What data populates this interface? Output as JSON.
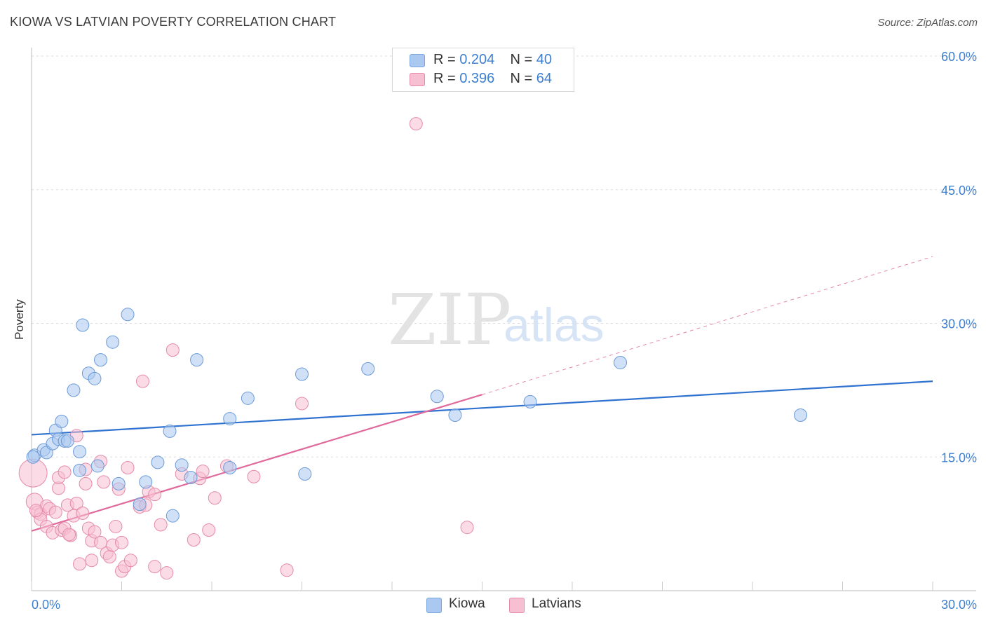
{
  "header": {
    "title": "KIOWA VS LATVIAN POVERTY CORRELATION CHART",
    "source": "Source: ZipAtlas.com"
  },
  "watermark": {
    "zip": "ZIP",
    "atlas": "atlas"
  },
  "legend": {
    "r_label": "R =",
    "n_label": "N =",
    "rows": [
      {
        "r": "0.204",
        "n": "40",
        "color": "#aac8f0",
        "border": "#7aa6de"
      },
      {
        "r": "0.396",
        "n": "64",
        "color": "#f7c0d2",
        "border": "#e58aa8"
      }
    ]
  },
  "chart_data": {
    "type": "scatter",
    "title": "KIOWA VS LATVIAN POVERTY CORRELATION CHART",
    "xlabel": "",
    "ylabel": "Poverty",
    "xlim": [
      0,
      30
    ],
    "ylim": [
      0,
      60
    ],
    "x_tick_labels": [
      "0.0%",
      "30.0%"
    ],
    "y_tick_labels": [
      "15.0%",
      "30.0%",
      "45.0%",
      "60.0%"
    ],
    "y_ticks": [
      15,
      30,
      45,
      60
    ],
    "grid": true,
    "legend_position": "bottom-center",
    "series": [
      {
        "name": "Kiowa",
        "color": "#aac8f0",
        "stroke": "#6b9ad8",
        "line_color": "#2f72d0",
        "trend": {
          "x": [
            0,
            30
          ],
          "y": [
            17.5,
            23.5
          ],
          "dashed_extension": false
        },
        "points": [
          [
            0.1,
            15.2
          ],
          [
            0.4,
            15.8
          ],
          [
            0.5,
            15.5
          ],
          [
            0.7,
            16.5
          ],
          [
            0.8,
            18.0
          ],
          [
            0.9,
            17.0
          ],
          [
            1.0,
            19.0
          ],
          [
            1.1,
            16.8
          ],
          [
            1.2,
            16.8
          ],
          [
            1.4,
            22.5
          ],
          [
            1.6,
            13.5
          ],
          [
            1.6,
            15.6
          ],
          [
            1.7,
            29.8
          ],
          [
            1.9,
            24.4
          ],
          [
            2.1,
            23.8
          ],
          [
            2.2,
            14.0
          ],
          [
            2.3,
            25.9
          ],
          [
            2.7,
            27.9
          ],
          [
            2.9,
            12.0
          ],
          [
            3.2,
            31.0
          ],
          [
            3.6,
            9.7
          ],
          [
            3.8,
            12.2
          ],
          [
            4.2,
            14.4
          ],
          [
            4.6,
            17.9
          ],
          [
            4.7,
            8.4
          ],
          [
            5.0,
            14.1
          ],
          [
            5.3,
            12.7
          ],
          [
            5.5,
            25.9
          ],
          [
            6.6,
            13.8
          ],
          [
            6.6,
            19.3
          ],
          [
            7.2,
            21.6
          ],
          [
            9.0,
            24.3
          ],
          [
            9.1,
            13.1
          ],
          [
            11.2,
            24.9
          ],
          [
            13.5,
            21.8
          ],
          [
            14.1,
            19.7
          ],
          [
            16.6,
            21.2
          ],
          [
            19.6,
            25.6
          ],
          [
            25.6,
            19.7
          ],
          [
            0.05,
            15.0
          ]
        ]
      },
      {
        "name": "Latvians",
        "color": "#f7c0d2",
        "stroke": "#e58aa8",
        "line_color": "#e0689a",
        "trend": {
          "x": [
            0,
            15
          ],
          "y": [
            6.7,
            22.0
          ],
          "dashed_extension": {
            "x": [
              15,
              30
            ],
            "y": [
              22.0,
              37.5
            ]
          }
        },
        "points": [
          [
            0.05,
            13.2
          ],
          [
            0.1,
            10.0
          ],
          [
            0.2,
            8.8
          ],
          [
            0.3,
            8.6
          ],
          [
            0.3,
            8.0
          ],
          [
            0.5,
            9.5
          ],
          [
            0.5,
            7.2
          ],
          [
            0.7,
            6.5
          ],
          [
            0.6,
            9.2
          ],
          [
            0.8,
            8.8
          ],
          [
            0.9,
            11.5
          ],
          [
            0.9,
            12.7
          ],
          [
            1.0,
            6.8
          ],
          [
            1.1,
            7.0
          ],
          [
            1.1,
            13.3
          ],
          [
            1.2,
            9.6
          ],
          [
            1.3,
            6.2
          ],
          [
            1.4,
            8.4
          ],
          [
            1.5,
            17.4
          ],
          [
            1.5,
            9.8
          ],
          [
            1.6,
            3.0
          ],
          [
            1.7,
            8.7
          ],
          [
            1.8,
            12.0
          ],
          [
            1.8,
            13.6
          ],
          [
            1.9,
            7.0
          ],
          [
            2.0,
            5.6
          ],
          [
            2.0,
            3.4
          ],
          [
            2.1,
            6.6
          ],
          [
            2.3,
            5.4
          ],
          [
            2.3,
            14.5
          ],
          [
            2.4,
            12.2
          ],
          [
            2.5,
            4.2
          ],
          [
            2.6,
            3.8
          ],
          [
            2.7,
            5.1
          ],
          [
            2.8,
            7.2
          ],
          [
            2.9,
            11.4
          ],
          [
            3.0,
            2.2
          ],
          [
            3.0,
            5.4
          ],
          [
            3.1,
            2.7
          ],
          [
            3.2,
            13.8
          ],
          [
            3.3,
            3.4
          ],
          [
            3.6,
            9.4
          ],
          [
            3.7,
            23.5
          ],
          [
            3.8,
            9.6
          ],
          [
            3.9,
            11.1
          ],
          [
            4.1,
            10.8
          ],
          [
            4.1,
            2.7
          ],
          [
            4.3,
            7.4
          ],
          [
            4.5,
            2.0
          ],
          [
            4.7,
            27.0
          ],
          [
            5.0,
            13.1
          ],
          [
            5.4,
            5.7
          ],
          [
            5.6,
            12.6
          ],
          [
            5.7,
            13.4
          ],
          [
            5.9,
            6.8
          ],
          [
            6.1,
            10.4
          ],
          [
            6.5,
            14.0
          ],
          [
            7.4,
            12.8
          ],
          [
            8.5,
            2.3
          ],
          [
            9.0,
            21.0
          ],
          [
            12.8,
            52.4
          ],
          [
            14.5,
            7.1
          ],
          [
            0.15,
            9.0
          ],
          [
            1.25,
            6.3
          ]
        ]
      }
    ]
  }
}
